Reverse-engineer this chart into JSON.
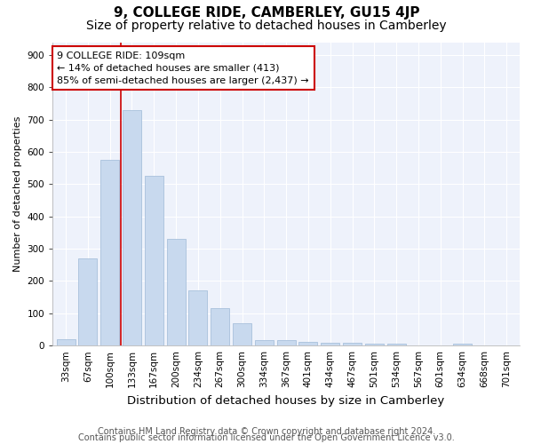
{
  "title": "9, COLLEGE RIDE, CAMBERLEY, GU15 4JP",
  "subtitle": "Size of property relative to detached houses in Camberley",
  "xlabel": "Distribution of detached houses by size in Camberley",
  "ylabel": "Number of detached properties",
  "categories": [
    "33sqm",
    "67sqm",
    "100sqm",
    "133sqm",
    "167sqm",
    "200sqm",
    "234sqm",
    "267sqm",
    "300sqm",
    "334sqm",
    "367sqm",
    "401sqm",
    "434sqm",
    "467sqm",
    "501sqm",
    "534sqm",
    "567sqm",
    "601sqm",
    "634sqm",
    "668sqm",
    "701sqm"
  ],
  "values": [
    20,
    270,
    575,
    730,
    525,
    330,
    170,
    115,
    68,
    18,
    18,
    12,
    10,
    8,
    7,
    6,
    0,
    0,
    7,
    0,
    0
  ],
  "bar_color": "#c8d9ee",
  "bar_edge_color": "#a8c0dc",
  "vline_color": "#cc0000",
  "annotation_line1": "9 COLLEGE RIDE: 109sqm",
  "annotation_line2": "← 14% of detached houses are smaller (413)",
  "annotation_line3": "85% of semi-detached houses are larger (2,437) →",
  "annotation_box_color": "#ffffff",
  "annotation_box_edge_color": "#cc0000",
  "ylim": [
    0,
    940
  ],
  "yticks": [
    0,
    100,
    200,
    300,
    400,
    500,
    600,
    700,
    800,
    900
  ],
  "background_color": "#eef2fb",
  "footer1": "Contains HM Land Registry data © Crown copyright and database right 2024.",
  "footer2": "Contains public sector information licensed under the Open Government Licence v3.0.",
  "title_fontsize": 11,
  "subtitle_fontsize": 10,
  "xlabel_fontsize": 9.5,
  "ylabel_fontsize": 8,
  "tick_fontsize": 7.5,
  "annotation_fontsize": 8,
  "footer_fontsize": 7
}
